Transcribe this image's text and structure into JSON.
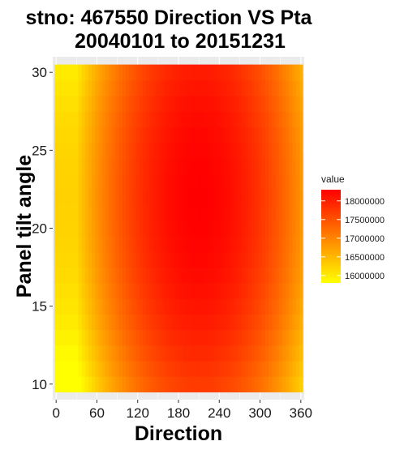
{
  "chart_data": {
    "type": "heatmap",
    "title_line1": "stno: 467550 Direction VS Pta",
    "title_line2": "20040101 to 20151231",
    "xlabel": "Direction",
    "ylabel": "Panel tilt angle",
    "x_ticks": [
      0,
      60,
      120,
      180,
      240,
      300,
      360
    ],
    "y_ticks": [
      10,
      15,
      20,
      25,
      30
    ],
    "xlim": [
      -5,
      365
    ],
    "ylim": [
      9,
      31
    ],
    "x_range": [
      0,
      360
    ],
    "y_range": [
      10,
      30
    ],
    "grid": true,
    "legend": {
      "title": "value",
      "position": "right",
      "breaks": [
        16000000,
        16500000,
        17000000,
        17500000,
        18000000
      ],
      "break_labels": [
        "16000000",
        "16500000",
        "17000000",
        "17500000",
        "18000000"
      ],
      "range": [
        15800000,
        18300000
      ]
    },
    "colors": {
      "low": "#ffff00",
      "high": "#ff0000"
    },
    "value_model": {
      "peak_direction": 210,
      "peak_tilt": 22,
      "peak_value": 18300000,
      "edge_value": 15800000
    }
  }
}
